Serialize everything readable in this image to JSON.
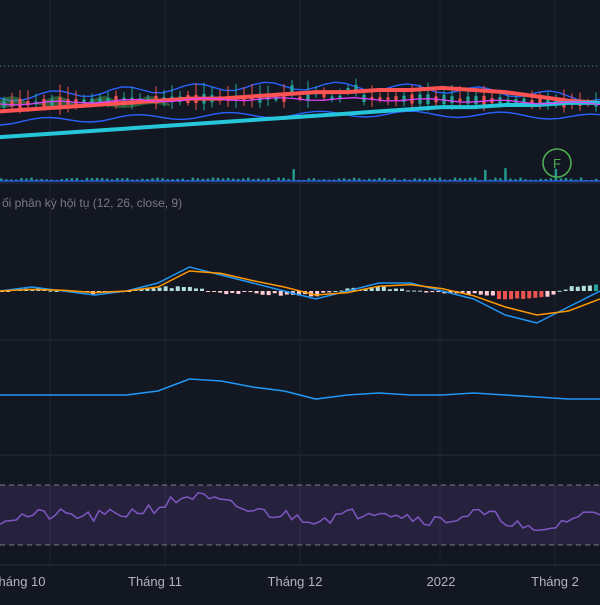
{
  "theme": {
    "background": "#131722",
    "grid": "#1f2330",
    "up_color": "#26a69a",
    "down_color": "#ef5350",
    "bb_color": "#2962ff",
    "ma_fast_color": "#e040fb",
    "ma_red_color": "#ff5252",
    "ma_cyan_color": "#26c6da",
    "ichimoku_color": "#4caf50",
    "macd_color": "#2196f3",
    "signal_color": "#ff9800",
    "hist_up": "#b2dfdb",
    "hist_up_strong": "#26a69a",
    "hist_down": "#ef5350",
    "hist_down_weak": "#ffcdd2",
    "rsi_color": "#7e57c2",
    "rsi_band_fill": "#7e57c2",
    "volume_color": "#26a69a",
    "dotted_line_color": "#26a69a",
    "marker_color": "#4caf50"
  },
  "macd_label": "ối phân kỳ hội tụ (12, 26, close, 9)",
  "event_marker": {
    "label": "F",
    "icon": "financials-event-icon"
  },
  "x_axis": {
    "labels": [
      "háng 10",
      "Tháng 11",
      "Tháng 12",
      "2022",
      "Tháng 2"
    ]
  },
  "chart_data": [
    {
      "type": "line",
      "pane": "price",
      "x_labels": [
        "háng 10",
        "Tháng 11",
        "Tháng 12",
        "2022",
        "Tháng 2"
      ],
      "series": [
        {
          "values": [
            112,
            113,
            114,
            115,
            116,
            117,
            118,
            118,
            119,
            120,
            121,
            121,
            122,
            122,
            123,
            122,
            121,
            119,
            117,
            116
          ]
        },
        {
          "values": [
            100,
            101,
            102,
            103,
            104,
            105,
            106,
            107,
            108,
            109,
            110,
            111,
            112,
            113,
            114,
            114,
            115,
            115,
            116,
            116
          ]
        }
      ],
      "ylim": [
        80,
        150
      ]
    },
    {
      "type": "bar",
      "pane": "volume",
      "values": [
        2,
        3,
        2,
        1,
        2,
        5,
        3,
        2,
        6,
        3,
        2,
        4,
        2,
        3,
        2,
        2,
        3,
        2,
        5,
        3
      ],
      "ylim": [
        0,
        10
      ]
    },
    {
      "type": "line",
      "pane": "macd",
      "series": [
        {
          "values": [
            0,
            0.5,
            0,
            -0.5,
            0,
            1,
            3,
            2,
            1,
            0,
            -1,
            0,
            1,
            1,
            0,
            -1,
            -3,
            -4,
            -2,
            0
          ]
        },
        {
          "values": [
            0,
            0.2,
            0.1,
            -0.2,
            0,
            0.5,
            2.5,
            2.2,
            1.3,
            0.5,
            -0.5,
            -0.2,
            0.6,
            0.8,
            0.3,
            -0.6,
            -2,
            -3,
            -2.5,
            -1
          ]
        }
      ],
      "ylim": [
        -6,
        6
      ]
    },
    {
      "type": "line",
      "pane": "indicator",
      "series": [
        {
          "values": [
            50,
            50,
            50,
            50,
            50,
            52,
            58,
            57,
            54,
            52,
            48,
            50,
            51,
            50,
            50,
            51,
            50,
            49,
            48,
            48
          ]
        }
      ],
      "ylim": [
        0,
        100
      ]
    },
    {
      "type": "line",
      "pane": "rsi",
      "series": [
        {
          "values": [
            48,
            50,
            50,
            49,
            51,
            54,
            60,
            56,
            52,
            50,
            48,
            50,
            53,
            49,
            47,
            51,
            48,
            40,
            48,
            52
          ]
        }
      ],
      "ylim": [
        30,
        70
      ],
      "bands": [
        35,
        65
      ]
    }
  ]
}
